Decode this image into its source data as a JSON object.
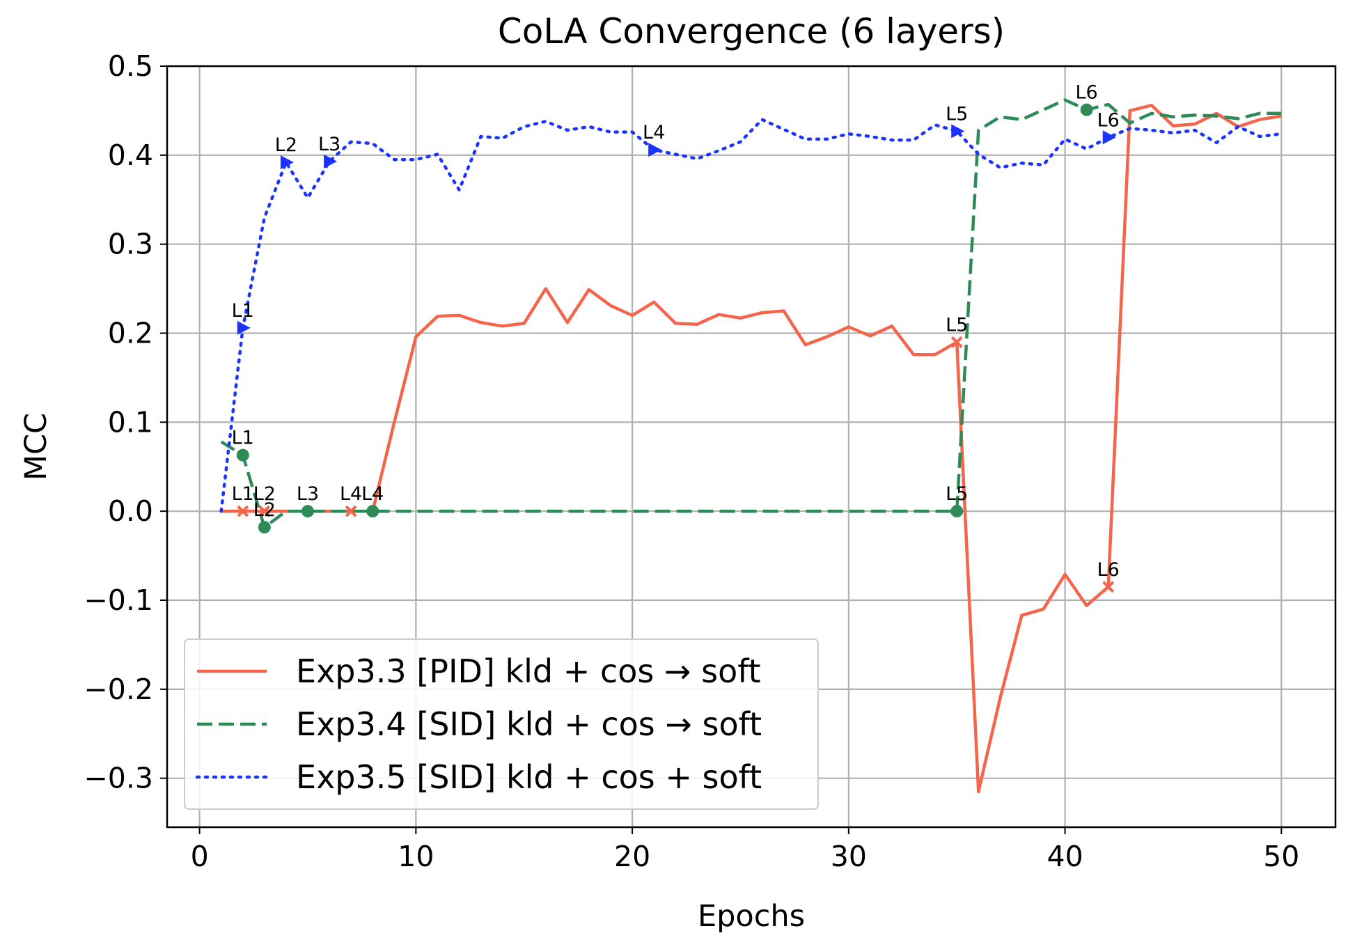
{
  "chart_data": {
    "type": "line",
    "title": "CoLA Convergence (6 layers)",
    "xlabel": "Epochs",
    "ylabel": "MCC",
    "xlim": [
      -1.5,
      52.5
    ],
    "ylim": [
      -0.355,
      0.5
    ],
    "xticks": [
      0,
      10,
      20,
      30,
      40,
      50
    ],
    "yticks": [
      0.5,
      0.4,
      0.3,
      0.2,
      0.1,
      0.0,
      -0.1,
      -0.2,
      -0.3
    ],
    "xtick_labels": [
      "0",
      "10",
      "20",
      "30",
      "40",
      "50"
    ],
    "ytick_labels": [
      "0.5",
      "0.4",
      "0.3",
      "0.2",
      "0.1",
      "0.0",
      "−0.1",
      "−0.2",
      "−0.3"
    ],
    "grid": true,
    "legend_position": "lower-left",
    "series": [
      {
        "name": "Exp3.3 [PID] kld + cos → soft",
        "color": "#f4654c",
        "style": "solid",
        "marker": "x",
        "x": [
          1,
          2,
          3,
          4,
          5,
          6,
          7,
          8,
          9,
          10,
          11,
          12,
          13,
          14,
          15,
          16,
          17,
          18,
          19,
          20,
          21,
          22,
          23,
          24,
          25,
          26,
          27,
          28,
          29,
          30,
          31,
          32,
          33,
          34,
          35,
          36,
          37,
          38,
          39,
          40,
          41,
          42,
          43,
          44,
          45,
          46,
          47,
          48,
          49,
          50
        ],
        "y": [
          0,
          0,
          0,
          0,
          0,
          0,
          0,
          0,
          0.1,
          0.196,
          0.219,
          0.22,
          0.212,
          0.208,
          0.211,
          0.25,
          0.212,
          0.249,
          0.231,
          0.22,
          0.235,
          0.211,
          0.21,
          0.221,
          0.217,
          0.223,
          0.225,
          0.187,
          0.196,
          0.207,
          0.197,
          0.208,
          0.176,
          0.176,
          0.19,
          -0.315,
          -0.21,
          -0.117,
          -0.11,
          -0.071,
          -0.106,
          -0.085,
          0.45,
          0.456,
          0.433,
          0.435,
          0.447,
          0.432,
          0.44,
          0.444
        ],
        "annotations": [
          {
            "x": 2,
            "y": 0,
            "label": "L1"
          },
          {
            "x": 3,
            "y": 0,
            "label": "L2"
          },
          {
            "x": 7,
            "y": 0,
            "label": "L4"
          },
          {
            "x": 35,
            "y": 0.19,
            "label": "L5"
          },
          {
            "x": 42,
            "y": -0.085,
            "label": "L6"
          }
        ]
      },
      {
        "name": "Exp3.4 [SID] kld + cos → soft",
        "color": "#2e8b57",
        "style": "dashed",
        "marker": "o",
        "x": [
          1,
          2,
          3,
          4,
          5,
          6,
          7,
          8,
          9,
          10,
          11,
          12,
          13,
          14,
          15,
          16,
          17,
          18,
          19,
          20,
          21,
          22,
          23,
          24,
          25,
          26,
          27,
          28,
          29,
          30,
          31,
          32,
          33,
          34,
          35,
          36,
          37,
          38,
          39,
          40,
          41,
          42,
          43,
          44,
          45,
          46,
          47,
          48,
          49,
          50
        ],
        "y": [
          0.078,
          0.063,
          -0.018,
          0,
          0,
          0,
          0,
          0,
          0,
          0,
          0,
          0,
          0,
          0,
          0,
          0,
          0,
          0,
          0,
          0,
          0,
          0,
          0,
          0,
          0,
          0,
          0,
          0,
          0,
          0,
          0,
          0,
          0,
          0,
          0,
          0.428,
          0.443,
          0.44,
          0.451,
          0.462,
          0.451,
          0.457,
          0.436,
          0.447,
          0.443,
          0.445,
          0.444,
          0.441,
          0.447,
          0.447
        ],
        "annotations": [
          {
            "x": 2,
            "y": 0.063,
            "label": "L1"
          },
          {
            "x": 3,
            "y": -0.018,
            "label": "L2"
          },
          {
            "x": 5,
            "y": 0,
            "label": "L3"
          },
          {
            "x": 8,
            "y": 0,
            "label": "L4"
          },
          {
            "x": 35,
            "y": 0,
            "label": "L5"
          },
          {
            "x": 41,
            "y": 0.451,
            "label": "L6"
          }
        ]
      },
      {
        "name": "Exp3.5 [SID] kld + cos + soft",
        "color": "#1a33ff",
        "style": "dotted",
        "marker": ">",
        "x": [
          1,
          2,
          3,
          4,
          5,
          6,
          7,
          8,
          9,
          10,
          11,
          12,
          13,
          14,
          15,
          16,
          17,
          18,
          19,
          20,
          21,
          22,
          23,
          24,
          25,
          26,
          27,
          28,
          29,
          30,
          31,
          32,
          33,
          34,
          35,
          36,
          37,
          38,
          39,
          40,
          41,
          42,
          43,
          44,
          45,
          46,
          47,
          48,
          49,
          50
        ],
        "y": [
          0,
          0.206,
          0.33,
          0.392,
          0.352,
          0.393,
          0.415,
          0.413,
          0.395,
          0.395,
          0.401,
          0.361,
          0.421,
          0.419,
          0.432,
          0.438,
          0.428,
          0.432,
          0.426,
          0.426,
          0.406,
          0.401,
          0.396,
          0.405,
          0.415,
          0.44,
          0.429,
          0.418,
          0.418,
          0.424,
          0.421,
          0.417,
          0.417,
          0.434,
          0.427,
          0.401,
          0.386,
          0.391,
          0.389,
          0.418,
          0.407,
          0.42,
          0.43,
          0.428,
          0.425,
          0.428,
          0.414,
          0.432,
          0.421,
          0.424
        ],
        "annotations": [
          {
            "x": 2,
            "y": 0.206,
            "label": "L1"
          },
          {
            "x": 4,
            "y": 0.392,
            "label": "L2"
          },
          {
            "x": 6,
            "y": 0.393,
            "label": "L3"
          },
          {
            "x": 21,
            "y": 0.406,
            "label": "L4"
          },
          {
            "x": 35,
            "y": 0.427,
            "label": "L5"
          },
          {
            "x": 42,
            "y": 0.42,
            "label": "L6"
          }
        ]
      }
    ]
  }
}
